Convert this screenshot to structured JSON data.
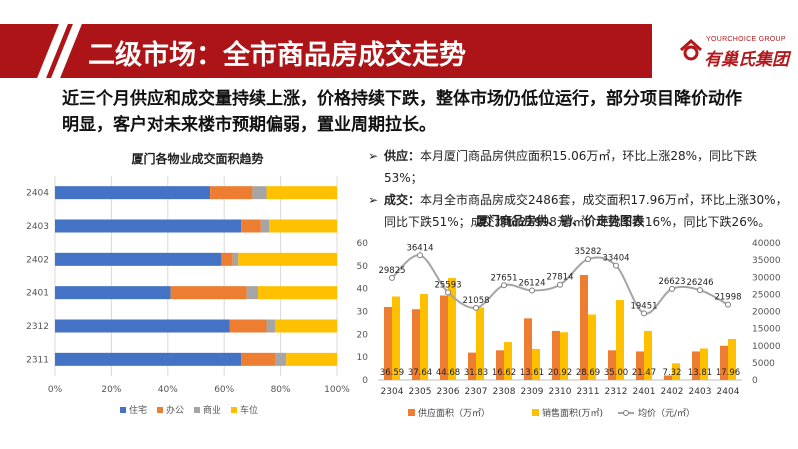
{
  "header": {
    "title": "二级市场：全市商品房成交走势",
    "logo_en": "YOURCHOICE GROUP",
    "logo_cn": "有巢氏集团",
    "brand_color": "#ad1417"
  },
  "intro": "近三个月供应和成交量持续上涨，价格持续下跌，整体市场仍低位运行，部分项目降价动作明显，客户对未来楼市预期偏弱，置业周期拉长。",
  "bullets": [
    {
      "label": "供应：",
      "text": "本月厦门商品房供应面积15.06万㎡，环比上涨28%，同比下跌53%；"
    },
    {
      "label": "成交：",
      "text": "本月全市商品房成交2486套，成交面积17.96万㎡，环比上涨30%，同比下跌51%；成交均价21998元/㎡，环比下跌16%，同比下跌26%。"
    }
  ],
  "chart_data": [
    {
      "type": "bar",
      "orientation": "horizontal",
      "stacked": "percent",
      "title": "厦门各物业成交面积趋势",
      "categories": [
        "2404",
        "2403",
        "2402",
        "2401",
        "2312",
        "2311"
      ],
      "series": [
        {
          "name": "住宅",
          "color": "#4472c4",
          "values": [
            55,
            66,
            59,
            41,
            62,
            66
          ]
        },
        {
          "name": "办公",
          "color": "#ed7d31",
          "values": [
            15,
            7,
            4,
            27,
            13,
            12
          ]
        },
        {
          "name": "商业",
          "color": "#a5a5a5",
          "values": [
            5,
            3,
            2,
            4,
            3,
            4
          ]
        },
        {
          "name": "车位",
          "color": "#ffc000",
          "values": [
            25,
            24,
            35,
            28,
            22,
            18
          ]
        }
      ],
      "xlim": [
        0,
        100
      ],
      "x_ticks": [
        "0%",
        "20%",
        "40%",
        "60%",
        "80%",
        "100%"
      ],
      "legend": "bottom",
      "grid": true
    },
    {
      "type": "bar+line",
      "title": "厦门商品房供、销、价走势图表",
      "categories": [
        "2304",
        "2305",
        "2306",
        "2307",
        "2308",
        "2309",
        "2310",
        "2311",
        "2312",
        "2401",
        "2402",
        "2403",
        "2404"
      ],
      "series": [
        {
          "name": "供应面积（万㎡）",
          "type": "bar",
          "axis": "left",
          "color": "#ed7d31",
          "values": [
            32,
            31,
            37,
            12,
            13,
            27,
            21.5,
            46,
            13,
            12.5,
            2,
            12.5,
            15
          ]
        },
        {
          "name": "销售面积(万㎡)",
          "type": "bar",
          "axis": "left",
          "color": "#ffc000",
          "values": [
            36.59,
            37.64,
            44.68,
            31.83,
            16.62,
            13.61,
            20.92,
            28.69,
            35.0,
            21.47,
            7.32,
            13.81,
            17.96
          ],
          "labels": [
            "36.59",
            "37.64",
            "44.68",
            "31.83",
            "16.62",
            "13.61",
            "20.92",
            "28.69",
            "35.00",
            "21.47",
            "7.32",
            "13.81",
            "17.96"
          ]
        },
        {
          "name": "均价（元/㎡）",
          "type": "line",
          "axis": "right",
          "color": "#a5a5a5",
          "values": [
            29825,
            36414,
            25593,
            21058,
            27651,
            26124,
            27814,
            35282,
            33404,
            19451,
            26623,
            26246,
            21998
          ],
          "labels": [
            "29825",
            "36414",
            "25593",
            "21058",
            "27651",
            "26124",
            "27814",
            "35282",
            "33404",
            "19451",
            "26623",
            "26246",
            "21998"
          ]
        }
      ],
      "ylim_left": [
        0,
        60
      ],
      "yticks_left": [
        "0",
        "10",
        "20",
        "30",
        "40",
        "50",
        "60"
      ],
      "ylim_right": [
        0,
        40000
      ],
      "yticks_right": [
        "0",
        "5000",
        "10000",
        "15000",
        "20000",
        "25000",
        "30000",
        "35000",
        "40000"
      ],
      "legend": "bottom",
      "grid": false
    }
  ]
}
